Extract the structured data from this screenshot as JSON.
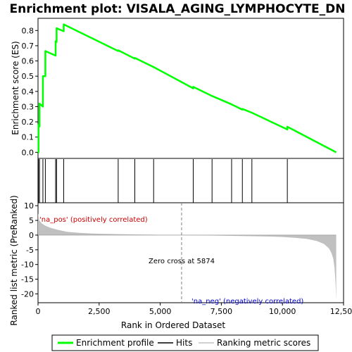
{
  "chart_data": {
    "type": "line",
    "title": "Enrichment plot: VISALA_AGING_LYMPHOCYTE_DN",
    "xlabel": "Rank in Ordered Dataset",
    "ylabel_top": "Enrichment score (ES)",
    "ylabel_bottom": "Ranked list metric (PreRanked)",
    "xlim": [
      0,
      12500
    ],
    "x_ticks": [
      0,
      2500,
      5000,
      7500,
      10000,
      12500
    ],
    "x_tick_labels": [
      "0",
      "2,500",
      "5,000",
      "7,500",
      "10,000",
      "12,500"
    ],
    "es_ylim": [
      -0.04,
      0.88
    ],
    "es_ticks": [
      0.0,
      0.1,
      0.2,
      0.3,
      0.4,
      0.5,
      0.6,
      0.7,
      0.8
    ],
    "es_tick_labels": [
      "0.0",
      "0.1",
      "0.2",
      "0.3",
      "0.4",
      "0.5",
      "0.6",
      "0.7",
      "0.8"
    ],
    "metric_ylim": [
      -23,
      11
    ],
    "metric_ticks": [
      10,
      5,
      0,
      -5,
      -10,
      -15,
      -20
    ],
    "metric_tick_labels": [
      "10",
      "5",
      "0",
      "-5",
      "-10",
      "-15",
      "-20"
    ],
    "n_genes": 12200,
    "zero_cross": 5874,
    "annotations": {
      "pos": "'na_pos' (positively correlated)",
      "neg": "'na_neg' (negatively correlated)",
      "zero": "Zero cross at 5874"
    },
    "hits": [
      20,
      60,
      200,
      300,
      720,
      760,
      1050,
      3280,
      3960,
      4730,
      6350,
      7120,
      7920,
      8360,
      8750,
      10200
    ],
    "es_profile": {
      "x": [
        0,
        20,
        20,
        60,
        60,
        200,
        200,
        300,
        300,
        720,
        720,
        760,
        760,
        1050,
        1050,
        3280,
        3280,
        3960,
        3960,
        4730,
        4730,
        6350,
        6350,
        7120,
        7120,
        7920,
        7920,
        8360,
        8360,
        8750,
        8750,
        10200,
        10200,
        12200
      ],
      "y": [
        0.0,
        0.0,
        0.18,
        0.17,
        0.32,
        0.3,
        0.5,
        0.5,
        0.665,
        0.635,
        0.73,
        0.725,
        0.815,
        0.795,
        0.84,
        0.665,
        0.67,
        0.615,
        0.62,
        0.56,
        0.56,
        0.42,
        0.43,
        0.37,
        0.37,
        0.315,
        0.315,
        0.28,
        0.285,
        0.26,
        0.26,
        0.15,
        0.168,
        0.0
      ]
    },
    "metric_curve": {
      "x": [
        0,
        50,
        150,
        300,
        500,
        800,
        1200,
        1800,
        2500,
        3500,
        4500,
        5500,
        5874,
        6500,
        7500,
        8500,
        9500,
        10000,
        10500,
        11000,
        11400,
        11700,
        11900,
        12000,
        12080,
        12130,
        12170,
        12200
      ],
      "y": [
        7.5,
        5.0,
        4.0,
        3.2,
        2.5,
        1.8,
        1.1,
        0.7,
        0.45,
        0.3,
        0.15,
        0.05,
        0.0,
        -0.08,
        -0.2,
        -0.35,
        -0.5,
        -0.65,
        -0.9,
        -1.3,
        -2.0,
        -3.0,
        -4.5,
        -6.0,
        -8.0,
        -11.0,
        -16.0,
        -22.0
      ]
    },
    "colors": {
      "es_line": "#00ff00",
      "hits": "#000000",
      "metric_fill": "#c0c0c0",
      "zero_line": "#808080",
      "pos_text": "#cc0000",
      "neg_text": "#0000cc"
    },
    "color_bar": [
      {
        "from": 0,
        "to": 300,
        "color": "#ee0000"
      },
      {
        "from": 300,
        "to": 700,
        "color": "#f42a2a"
      },
      {
        "from": 700,
        "to": 1100,
        "color": "#f85555"
      },
      {
        "from": 1100,
        "to": 1800,
        "color": "#fb7070"
      },
      {
        "from": 1800,
        "to": 2800,
        "color": "#fd9595"
      },
      {
        "from": 2800,
        "to": 4000,
        "color": "#ffc0d8"
      },
      {
        "from": 4000,
        "to": 5874,
        "color": "#ffd2e6"
      },
      {
        "from": 5874,
        "to": 7500,
        "color": "#e0e0f8"
      },
      {
        "from": 7500,
        "to": 9200,
        "color": "#d6d6f6"
      },
      {
        "from": 9200,
        "to": 10300,
        "color": "#c0c0f2"
      },
      {
        "from": 10300,
        "to": 10700,
        "color": "#a0a0ee"
      },
      {
        "from": 10700,
        "to": 11400,
        "color": "#6a6ae6"
      },
      {
        "from": 11400,
        "to": 11850,
        "color": "#4040dd"
      },
      {
        "from": 11850,
        "to": 12200,
        "color": "#1010cc"
      }
    ],
    "legend": [
      {
        "label": "Enrichment profile",
        "kind": "es"
      },
      {
        "label": "Hits",
        "kind": "hit"
      },
      {
        "label": "Ranking metric scores",
        "kind": "metric"
      }
    ]
  }
}
